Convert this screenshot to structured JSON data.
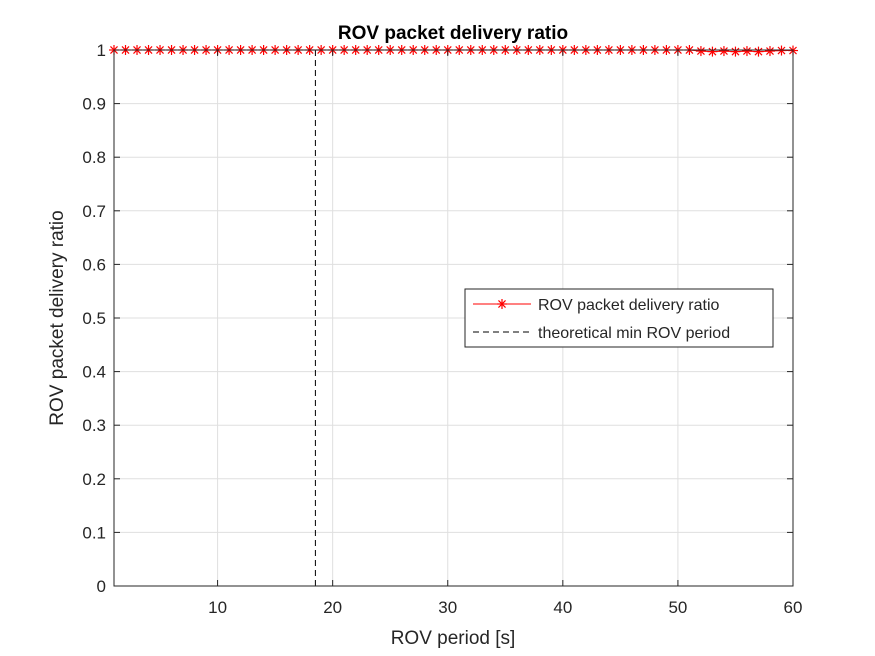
{
  "chart_data": {
    "type": "line",
    "title": "ROV packet delivery ratio",
    "xlabel": "ROV period [s]",
    "ylabel": "ROV packet delivery ratio",
    "xlim": [
      1,
      60
    ],
    "ylim": [
      0,
      1
    ],
    "xticks": [
      10,
      20,
      30,
      40,
      50,
      60
    ],
    "yticks": [
      0,
      0.1,
      0.2,
      0.3,
      0.4,
      0.5,
      0.6,
      0.7,
      0.8,
      0.9,
      1
    ],
    "grid": true,
    "legend_position": "center-right",
    "series": [
      {
        "name": "ROV packet delivery ratio",
        "color": "#ff0000",
        "marker": "asterisk",
        "x": [
          1,
          2,
          3,
          4,
          5,
          6,
          7,
          8,
          9,
          10,
          11,
          12,
          13,
          14,
          15,
          16,
          17,
          18,
          19,
          20,
          21,
          22,
          23,
          24,
          25,
          26,
          27,
          28,
          29,
          30,
          31,
          32,
          33,
          34,
          35,
          36,
          37,
          38,
          39,
          40,
          41,
          42,
          43,
          44,
          45,
          46,
          47,
          48,
          49,
          50,
          51,
          52,
          53,
          54,
          55,
          56,
          57,
          58,
          59,
          60
        ],
        "y": [
          1,
          1,
          1,
          1,
          1,
          1,
          1,
          1,
          1,
          1,
          1,
          1,
          1,
          1,
          1,
          1,
          1,
          1,
          1,
          1,
          1,
          1,
          1,
          1,
          1,
          1,
          1,
          1,
          1,
          1,
          1,
          1,
          1,
          1,
          1,
          1,
          1,
          1,
          1,
          1,
          1,
          1,
          1,
          1,
          1,
          1,
          1,
          1,
          1,
          1,
          1,
          0.998,
          0.997,
          0.998,
          0.997,
          0.998,
          0.997,
          0.998,
          0.999,
          0.999
        ]
      },
      {
        "name": "theoretical min ROV period",
        "color": "#000000",
        "style": "dashed",
        "x": [
          18.5,
          18.5
        ],
        "y": [
          0,
          1
        ]
      }
    ]
  }
}
